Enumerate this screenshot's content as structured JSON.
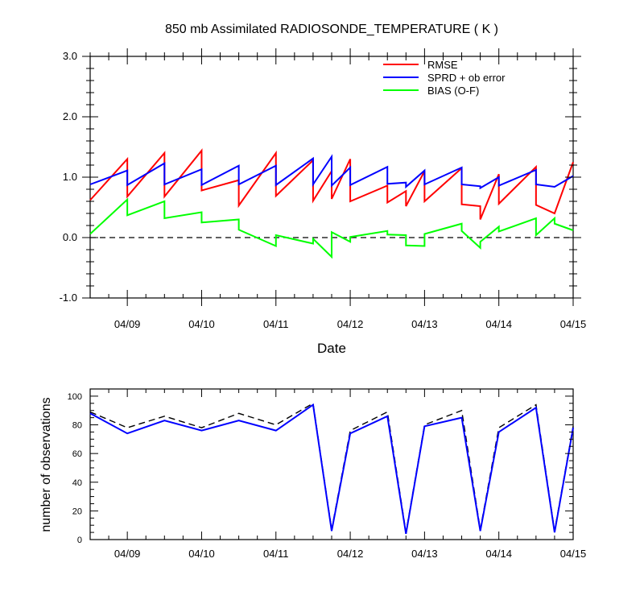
{
  "title": "850 mb Assimilated RADIOSONDE_TEMPERATURE ( K )",
  "colors": {
    "rmse": "#ff0000",
    "sprd": "#0000ff",
    "bias": "#00ff00",
    "zero": "#000000",
    "obs_total": "#000000",
    "obs_used": "#0000ff"
  },
  "chart_data": [
    {
      "type": "line",
      "title": "850 mb Assimilated RADIOSONDE_TEMPERATURE ( K )",
      "xlabel": "Date",
      "ylabel": "",
      "xlim": [
        8.5,
        15.0
      ],
      "ylim": [
        -1.0,
        3.0
      ],
      "yticks": [
        -1.0,
        0.0,
        1.0,
        2.0,
        3.0
      ],
      "ytick_labels": [
        "-1.0",
        "0.0",
        "1.0",
        "2.0",
        "3.0"
      ],
      "xticks": [
        9,
        10,
        11,
        12,
        13,
        14,
        15
      ],
      "xtick_labels": [
        "04/09",
        "04/10",
        "04/11",
        "04/12",
        "04/13",
        "04/14",
        "04/15"
      ],
      "legend": {
        "placement": "top-right",
        "entries": [
          "RMSE",
          "SPRD + ob error",
          "BIAS (O-F)"
        ]
      },
      "reference_line": {
        "y": 0.0,
        "style": "dashed"
      },
      "series": [
        {
          "name": "RMSE",
          "color": "#ff0000",
          "x": [
            8.5,
            9.0,
            9.0,
            9.5,
            9.5,
            10.0,
            10.0,
            10.5,
            10.5,
            11.0,
            11.0,
            11.5,
            11.5,
            11.75,
            11.75,
            12.0,
            12.0,
            12.5,
            12.5,
            12.75,
            12.75,
            13.0,
            13.0,
            13.5,
            13.5,
            13.75,
            13.75,
            14.0,
            14.0,
            14.5,
            14.5,
            14.75,
            14.75,
            15.0
          ],
          "y": [
            0.62,
            1.3,
            0.68,
            1.4,
            0.68,
            1.44,
            0.78,
            0.95,
            0.53,
            1.4,
            0.69,
            1.28,
            0.61,
            1.1,
            0.64,
            1.3,
            0.6,
            0.86,
            0.58,
            0.77,
            0.52,
            1.1,
            0.6,
            1.15,
            0.55,
            0.52,
            0.3,
            1.05,
            0.56,
            1.17,
            0.54,
            0.4,
            0.4,
            1.25
          ]
        },
        {
          "name": "SPRD + ob error",
          "color": "#0000ff",
          "x": [
            8.5,
            9.0,
            9.0,
            9.5,
            9.5,
            10.0,
            10.0,
            10.5,
            10.5,
            11.0,
            11.0,
            11.5,
            11.5,
            11.75,
            11.75,
            12.0,
            12.0,
            12.5,
            12.5,
            12.75,
            12.75,
            13.0,
            13.0,
            13.5,
            13.5,
            13.75,
            13.75,
            14.0,
            14.0,
            14.5,
            14.5,
            14.75,
            14.75,
            15.0
          ],
          "y": [
            0.88,
            1.11,
            0.87,
            1.23,
            0.88,
            1.13,
            0.87,
            1.19,
            0.88,
            1.19,
            0.87,
            1.31,
            0.88,
            1.34,
            0.86,
            1.16,
            0.87,
            1.17,
            0.89,
            0.91,
            0.84,
            1.11,
            0.88,
            1.16,
            0.88,
            0.85,
            0.82,
            1.0,
            0.86,
            1.12,
            0.88,
            0.84,
            0.84,
            1.02
          ]
        },
        {
          "name": "BIAS (O-F)",
          "color": "#00ff00",
          "x": [
            8.5,
            9.0,
            9.0,
            9.5,
            9.5,
            10.0,
            10.0,
            10.5,
            10.5,
            11.0,
            11.0,
            11.5,
            11.5,
            11.75,
            11.75,
            12.0,
            12.0,
            12.5,
            12.5,
            12.75,
            12.75,
            13.0,
            13.0,
            13.5,
            13.5,
            13.75,
            13.75,
            14.0,
            14.0,
            14.5,
            14.5,
            14.75,
            14.75,
            15.0
          ],
          "y": [
            0.06,
            0.63,
            0.37,
            0.6,
            0.32,
            0.42,
            0.25,
            0.3,
            0.13,
            -0.14,
            0.04,
            -0.1,
            -0.02,
            -0.32,
            0.09,
            -0.07,
            0.01,
            0.11,
            0.05,
            0.04,
            -0.13,
            -0.14,
            0.06,
            0.23,
            0.11,
            -0.17,
            -0.07,
            0.18,
            0.1,
            0.32,
            0.04,
            0.32,
            0.23,
            0.12
          ]
        }
      ]
    },
    {
      "type": "line",
      "title": "",
      "xlabel": "",
      "ylabel": "number of observations",
      "xlim": [
        8.5,
        15.0
      ],
      "ylim": [
        0,
        105
      ],
      "yticks": [
        0,
        20,
        40,
        60,
        80,
        100
      ],
      "ytick_labels": [
        "0",
        "20",
        "40",
        "60",
        "80",
        "100"
      ],
      "xticks": [
        9,
        10,
        11,
        12,
        13,
        14,
        15
      ],
      "xtick_labels": [
        "04/09",
        "04/10",
        "04/11",
        "04/12",
        "04/13",
        "04/14",
        "04/15"
      ],
      "series": [
        {
          "color": "#000000",
          "style": "dashed",
          "x": [
            8.5,
            9.0,
            9.5,
            10.0,
            10.5,
            11.0,
            11.5,
            11.75,
            12.0,
            12.5,
            12.75,
            13.0,
            13.5,
            13.75,
            14.0,
            14.5,
            14.75,
            15.0
          ],
          "y": [
            89,
            78,
            86,
            78,
            88,
            80,
            95,
            7,
            76,
            89,
            5,
            80,
            90,
            7,
            78,
            94,
            6,
            79
          ]
        },
        {
          "color": "#0000ff",
          "style": "solid",
          "x": [
            8.5,
            9.0,
            9.5,
            10.0,
            10.5,
            11.0,
            11.5,
            11.75,
            12.0,
            12.5,
            12.75,
            13.0,
            13.5,
            13.75,
            14.0,
            14.5,
            14.75,
            15.0
          ],
          "y": [
            88,
            74,
            83,
            76,
            83,
            76,
            94,
            6,
            74,
            86,
            4,
            79,
            85,
            6,
            75,
            92,
            5,
            78
          ]
        }
      ]
    }
  ]
}
